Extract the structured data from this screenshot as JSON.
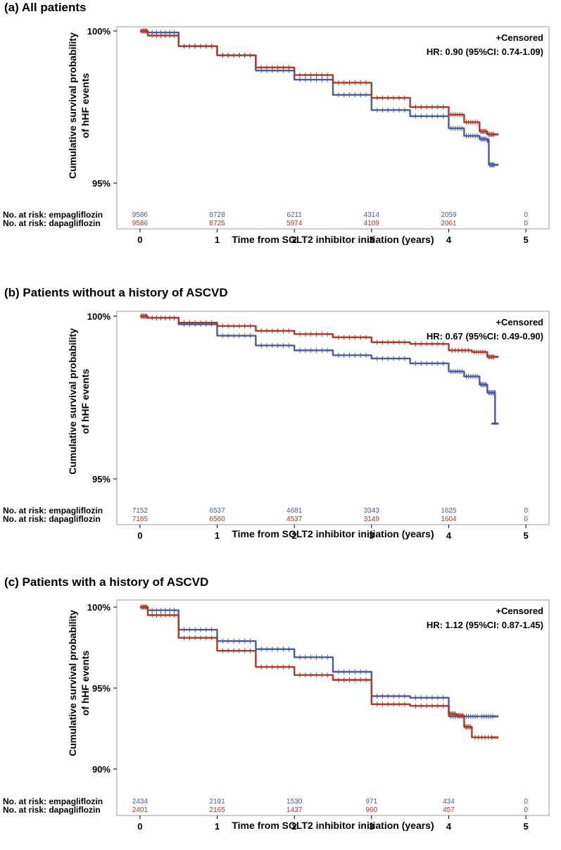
{
  "colors": {
    "empagliflozin": "#4a5aa3",
    "dapagliflozin": "#a83a2a",
    "frame": "#999999"
  },
  "chart_data": [
    {
      "type": "line",
      "title": "(a)  All patients",
      "xlabel": "Time from SGLT2 inhibitor initiation (years)",
      "ylabel": [
        "Cumulative survival probability",
        "of hHF events"
      ],
      "xlim": [
        -0.3,
        5.3
      ],
      "ylim": [
        95,
        100
      ],
      "xticks": [
        0,
        1,
        2,
        3,
        4,
        5
      ],
      "yticks": [
        {
          "value": 100,
          "label": "100%"
        },
        {
          "value": 95,
          "label": "95%"
        }
      ],
      "censored_label": "+Censored",
      "hr_label": "HR: 0.90 (95%CI: 0.74-1.09)",
      "series": [
        {
          "name": "empagliflozin",
          "color": "#4a5aa3",
          "x": [
            0,
            0.1,
            0.5,
            1,
            1.5,
            2,
            2.5,
            3,
            3.5,
            4,
            4.2,
            4.4,
            4.5,
            4.52,
            4.6
          ],
          "y": [
            100,
            99.95,
            99.5,
            99.2,
            98.7,
            98.4,
            97.9,
            97.4,
            97.2,
            96.8,
            96.55,
            96.45,
            96.4,
            95.6,
            95.6
          ]
        },
        {
          "name": "dapagliflozin",
          "color": "#a83a2a",
          "x": [
            0,
            0.1,
            0.5,
            1,
            1.5,
            2,
            2.5,
            3,
            3.5,
            4,
            4.2,
            4.4,
            4.5,
            4.6
          ],
          "y": [
            100,
            99.85,
            99.5,
            99.2,
            98.8,
            98.55,
            98.3,
            97.8,
            97.5,
            97.25,
            97.0,
            96.7,
            96.6,
            96.6
          ]
        }
      ],
      "risk_table": {
        "times": [
          0,
          1,
          2,
          3,
          4,
          5
        ],
        "rows": [
          {
            "label": "No. at risk: empagliflozin",
            "color": "#4a5aa3",
            "values": [
              "9586",
              "8728",
              "6211",
              "4314",
              "2059",
              "0"
            ]
          },
          {
            "label": "No. at risk: dapagliflozin",
            "color": "#a83a2a",
            "values": [
              "9586",
              "8725",
              "5974",
              "4109",
              "2061",
              "0"
            ]
          }
        ]
      }
    },
    {
      "type": "line",
      "title": "(b)  Patients without a history of ASCVD",
      "xlabel": "Time from SGLT2 inhibitor initiation (years)",
      "ylabel": [
        "Cumulative survival probability",
        "of hHF events"
      ],
      "xlim": [
        -0.3,
        5.3
      ],
      "ylim": [
        95,
        100
      ],
      "xticks": [
        0,
        1,
        2,
        3,
        4,
        5
      ],
      "yticks": [
        {
          "value": 100,
          "label": "100%"
        },
        {
          "value": 95,
          "label": "95%"
        }
      ],
      "censored_label": "+Censored",
      "hr_label": "HR: 0.67 (95%CI: 0.49-0.90)",
      "series": [
        {
          "name": "empagliflozin",
          "color": "#4a5aa3",
          "x": [
            0,
            0.1,
            0.5,
            1,
            1.5,
            2,
            2.5,
            3,
            3.5,
            4,
            4.2,
            4.4,
            4.5,
            4.6,
            4.6
          ],
          "y": [
            100,
            99.95,
            99.75,
            99.4,
            99.1,
            98.95,
            98.8,
            98.7,
            98.55,
            98.3,
            98.15,
            97.9,
            97.65,
            97.65,
            96.7
          ]
        },
        {
          "name": "dapagliflozin",
          "color": "#a83a2a",
          "x": [
            0,
            0.1,
            0.5,
            1,
            1.5,
            2,
            2.5,
            3,
            3.5,
            4,
            4.3,
            4.5,
            4.6
          ],
          "y": [
            100,
            99.95,
            99.8,
            99.7,
            99.55,
            99.45,
            99.35,
            99.2,
            99.15,
            98.95,
            98.9,
            98.75,
            98.75
          ]
        }
      ],
      "risk_table": {
        "times": [
          0,
          1,
          2,
          3,
          4,
          5
        ],
        "rows": [
          {
            "label": "No. at risk: empagliflozin",
            "color": "#4a5aa3",
            "values": [
              "7152",
              "6537",
              "4681",
              "3343",
              "1625",
              "0"
            ]
          },
          {
            "label": "No. at risk: dapagliflozin",
            "color": "#a83a2a",
            "values": [
              "7185",
              "6560",
              "4537",
              "3149",
              "1604",
              "0"
            ]
          }
        ]
      }
    },
    {
      "type": "line",
      "title": "(c)  Patients with a history of ASCVD",
      "xlabel": "Time from SGLT2 inhibitor initiation (years)",
      "ylabel": [
        "Cumulative survival probability",
        "of hHF events"
      ],
      "xlim": [
        -0.3,
        5.3
      ],
      "ylim": [
        90,
        100
      ],
      "xticks": [
        0,
        1,
        2,
        3,
        4,
        5
      ],
      "yticks": [
        {
          "value": 100,
          "label": "100%"
        },
        {
          "value": 95,
          "label": "95%"
        },
        {
          "value": 90,
          "label": "90%"
        }
      ],
      "censored_label": "+Censored",
      "hr_label": "HR: 1.12 (95%CI: 0.87-1.45)",
      "series": [
        {
          "name": "empagliflozin",
          "color": "#4a5aa3",
          "x": [
            0,
            0.1,
            0.5,
            1,
            1.5,
            2,
            2.5,
            3,
            3.5,
            4,
            4.2,
            4.4,
            4.6
          ],
          "y": [
            100,
            99.8,
            98.6,
            97.9,
            97.4,
            96.9,
            96.0,
            94.5,
            94.4,
            93.25,
            93.25,
            93.25,
            93.25
          ]
        },
        {
          "name": "dapagliflozin",
          "color": "#a83a2a",
          "x": [
            0,
            0.1,
            0.5,
            1,
            1.5,
            2,
            2.5,
            3,
            3.5,
            4,
            4.1,
            4.2,
            4.3,
            4.6
          ],
          "y": [
            100,
            99.5,
            98.1,
            97.3,
            96.3,
            95.8,
            95.5,
            94.0,
            93.9,
            93.4,
            93.3,
            92.6,
            91.95,
            91.95
          ]
        }
      ],
      "risk_table": {
        "times": [
          0,
          1,
          2,
          3,
          4,
          5
        ],
        "rows": [
          {
            "label": "No. at risk: empagliflozin",
            "color": "#4a5aa3",
            "values": [
              "2434",
              "2191",
              "1530",
              "971",
              "434",
              "0"
            ]
          },
          {
            "label": "No. at risk: dapagliflozin",
            "color": "#a83a2a",
            "values": [
              "2401",
              "2165",
              "1437",
              "960",
              "457",
              "0"
            ]
          }
        ]
      }
    }
  ]
}
